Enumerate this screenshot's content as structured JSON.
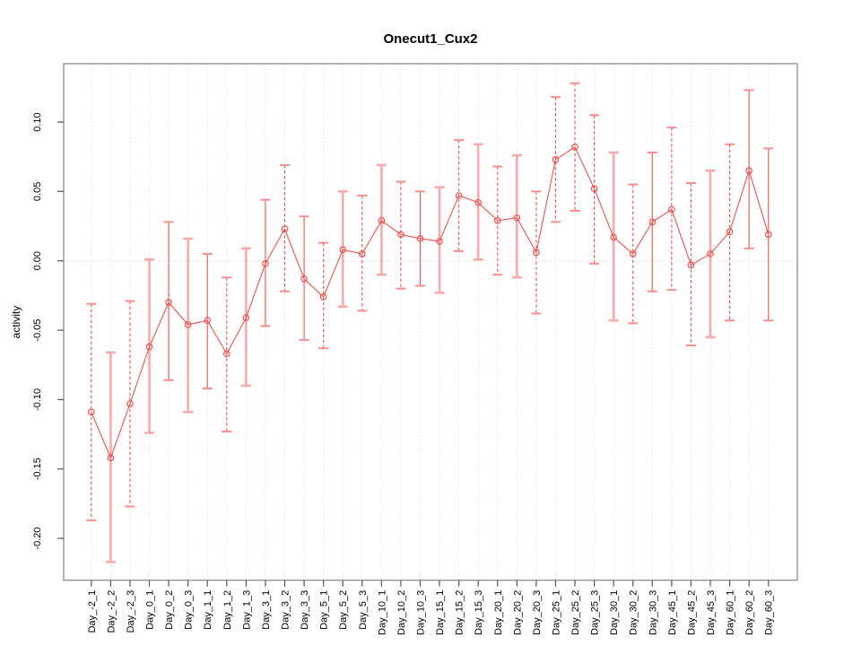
{
  "figure": {
    "background": "#ffffff"
  },
  "chart_data": {
    "type": "scatter",
    "subtype": "points-with-error-bars-and-connecting-line",
    "title": "Onecut1_Cux2",
    "xlabel": "",
    "ylabel": "activity",
    "legend": "none",
    "grid": {
      "vertical_dotted_per_category": true,
      "horizontal_dotted_zero_line": true
    },
    "ylim": [
      -0.23,
      0.142
    ],
    "yticks": [
      -0.2,
      -0.15,
      -0.1,
      -0.05,
      0.0,
      0.05,
      0.1
    ],
    "ytick_labels": [
      "-0.20",
      "-0.15",
      "-0.10",
      "-0.05",
      "0.00",
      "0.05",
      "0.10"
    ],
    "categories": [
      "Day_-2_1",
      "Day_-2_2",
      "Day_-2_3",
      "Day_0_1",
      "Day_0_2",
      "Day_0_3",
      "Day_1_1",
      "Day_1_2",
      "Day_1_3",
      "Day_3_1",
      "Day_3_2",
      "Day_3_3",
      "Day_5_1",
      "Day_5_2",
      "Day_5_3",
      "Day_10_1",
      "Day_10_2",
      "Day_10_3",
      "Day_15_1",
      "Day_15_2",
      "Day_15_3",
      "Day_20_1",
      "Day_20_2",
      "Day_20_3",
      "Day_25_1",
      "Day_25_2",
      "Day_25_3",
      "Day_30_1",
      "Day_30_2",
      "Day_30_3",
      "Day_45_1",
      "Day_45_2",
      "Day_45_3",
      "Day_60_1",
      "Day_60_2",
      "Day_60_3"
    ],
    "series": [
      {
        "name": "activity",
        "values": [
          -0.109,
          -0.142,
          -0.103,
          -0.062,
          -0.03,
          -0.046,
          -0.043,
          -0.067,
          -0.041,
          -0.002,
          0.023,
          -0.013,
          -0.026,
          0.008,
          0.005,
          0.029,
          0.019,
          0.016,
          0.014,
          0.047,
          0.042,
          0.029,
          0.031,
          0.006,
          0.073,
          0.082,
          0.052,
          0.017,
          0.005,
          0.028,
          0.037,
          -0.003,
          0.005,
          0.021,
          0.065,
          0.019
        ],
        "error_low": [
          -0.187,
          -0.217,
          -0.177,
          -0.124,
          -0.086,
          -0.109,
          -0.092,
          -0.123,
          -0.09,
          -0.047,
          -0.022,
          -0.057,
          -0.063,
          -0.033,
          -0.036,
          -0.01,
          -0.02,
          -0.018,
          -0.023,
          0.007,
          0.001,
          -0.01,
          -0.012,
          -0.038,
          0.028,
          0.036,
          -0.002,
          -0.043,
          -0.045,
          -0.022,
          -0.021,
          -0.061,
          -0.055,
          -0.043,
          0.009,
          -0.043
        ],
        "error_high": [
          -0.031,
          -0.066,
          -0.029,
          0.001,
          0.028,
          0.016,
          0.005,
          -0.012,
          0.009,
          0.044,
          0.069,
          0.032,
          0.013,
          0.05,
          0.047,
          0.069,
          0.057,
          0.05,
          0.053,
          0.087,
          0.084,
          0.068,
          0.076,
          0.05,
          0.118,
          0.128,
          0.105,
          0.078,
          0.055,
          0.078,
          0.096,
          0.056,
          0.065,
          0.084,
          0.123,
          0.081
        ],
        "bar_styles": [
          "dashed",
          "thick",
          "dashed",
          "thick",
          "solid",
          "thick",
          "solid",
          "dashed",
          "thick",
          "solid",
          "dashed",
          "solid",
          "dashed",
          "thick",
          "dashed",
          "thick",
          "dashed",
          "solid",
          "thick",
          "dashed",
          "thick",
          "dashed",
          "thick",
          "dashed",
          "dashed",
          "dashed",
          "dashed",
          "thick",
          "dashed",
          "solid",
          "dashed",
          "dashed",
          "thick",
          "dashed",
          "solid",
          "solid"
        ]
      }
    ],
    "colors": {
      "point": "#ef5350",
      "line": "#ef5350",
      "error_bar": "#ef5350",
      "error_bar_thick": "#f8abab",
      "error_cap": "#f58f8f",
      "grid": "#dcdcdc",
      "zero_line": "#d4d4d4",
      "plot_border": "#8a8a8a",
      "tick": "#555555",
      "text": "#000000"
    }
  }
}
